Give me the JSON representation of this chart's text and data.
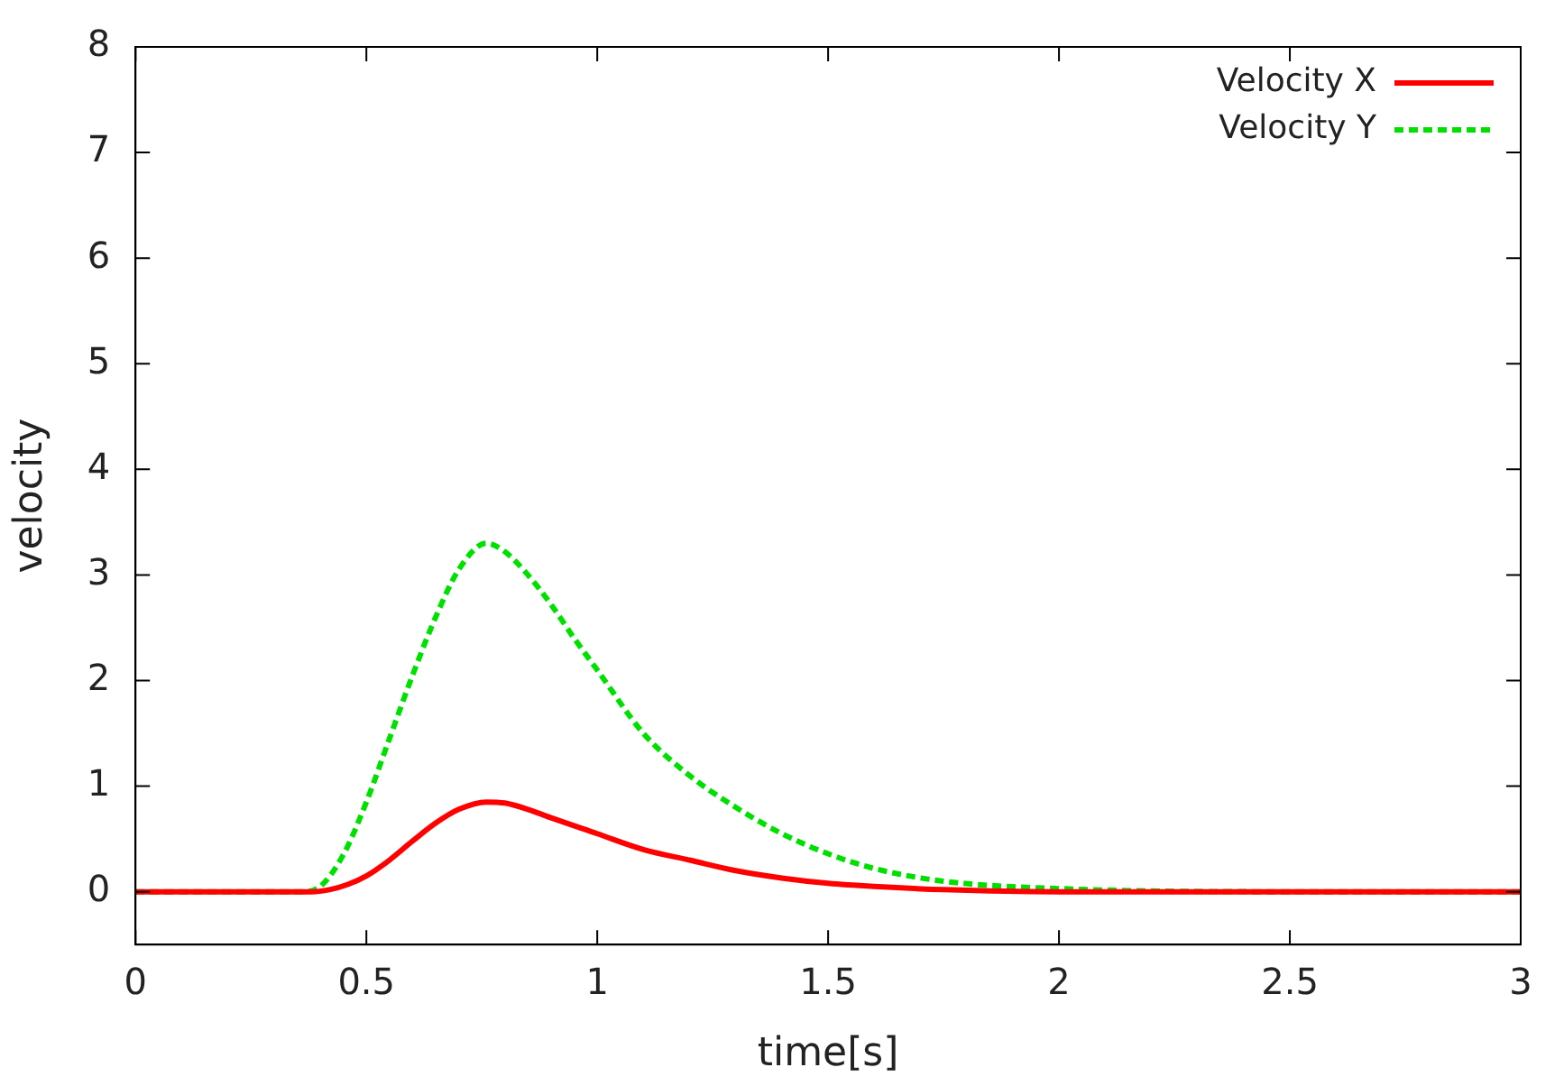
{
  "chart_data": {
    "type": "line",
    "xlabel": "time[s]",
    "ylabel": "velocity",
    "xlim": [
      0,
      3
    ],
    "ylim": [
      -0.5,
      8
    ],
    "xticks": [
      0,
      0.5,
      1,
      1.5,
      2,
      2.5,
      3
    ],
    "yticks": [
      0,
      1,
      2,
      3,
      4,
      5,
      6,
      7,
      8
    ],
    "grid": false,
    "legend": "top right",
    "marker": "none",
    "series": [
      {
        "name": "Velocity X",
        "color": "#ff0000",
        "line_style": "solid",
        "x": [
          0,
          0.2,
          0.38,
          0.42,
          0.46,
          0.5,
          0.55,
          0.6,
          0.65,
          0.7,
          0.76,
          0.8,
          0.85,
          0.9,
          1.0,
          1.1,
          1.2,
          1.3,
          1.4,
          1.5,
          1.6,
          1.75,
          2.0,
          2.5,
          3.0
        ],
        "values": [
          0,
          0,
          0,
          0.02,
          0.07,
          0.15,
          0.3,
          0.48,
          0.65,
          0.78,
          0.85,
          0.84,
          0.78,
          0.7,
          0.55,
          0.4,
          0.3,
          0.2,
          0.13,
          0.08,
          0.05,
          0.02,
          0,
          0,
          0
        ]
      },
      {
        "name": "Velocity Y",
        "color": "#00e000",
        "line_style": "dashed",
        "x": [
          0,
          0.2,
          0.36,
          0.4,
          0.45,
          0.5,
          0.55,
          0.6,
          0.65,
          0.7,
          0.76,
          0.8,
          0.85,
          0.9,
          0.95,
          1.0,
          1.1,
          1.2,
          1.3,
          1.4,
          1.5,
          1.6,
          1.75,
          2.0,
          2.5,
          3.0
        ],
        "values": [
          0,
          0,
          0,
          0.05,
          0.35,
          0.85,
          1.45,
          2.05,
          2.6,
          3.05,
          3.3,
          3.22,
          3.0,
          2.72,
          2.4,
          2.1,
          1.5,
          1.1,
          0.8,
          0.55,
          0.36,
          0.22,
          0.1,
          0.03,
          0,
          0
        ]
      }
    ]
  }
}
